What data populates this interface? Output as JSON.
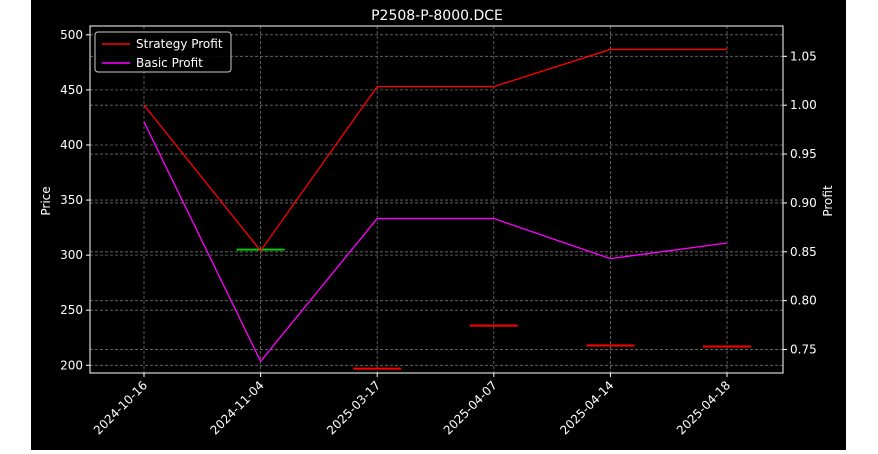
{
  "chart_data": {
    "type": "line",
    "title": "P2508-P-8000.DCE",
    "xlabel": "",
    "ylabel": "Price",
    "ylabel_right": "Profit",
    "categories": [
      "2024-10-16",
      "2024-11-04",
      "2025-03-17",
      "2025-04-07",
      "2025-04-14",
      "2025-04-18"
    ],
    "y_left": {
      "range": [
        193,
        508
      ],
      "ticks": [
        200,
        250,
        300,
        350,
        400,
        450,
        500
      ]
    },
    "y_right": {
      "range": [
        0.726,
        1.081
      ],
      "ticks": [
        "0.75",
        "0.80",
        "0.85",
        "0.90",
        "0.95",
        "1.00",
        "1.05"
      ]
    },
    "grid": true,
    "legend_position": "top-left",
    "series": [
      {
        "name": "Strategy Profit",
        "axis": "right",
        "color": "#ff0000",
        "values": [
          1.0,
          0.851,
          1.019,
          1.019,
          1.057,
          1.057
        ]
      },
      {
        "name": "Basic Profit",
        "axis": "right",
        "color": "#ff00ff",
        "values": [
          0.983,
          0.738,
          0.884,
          0.884,
          0.843,
          0.859
        ]
      }
    ],
    "markers": [
      {
        "at": "2024-11-04",
        "price": 305,
        "color": "#00cc00"
      },
      {
        "at": "2025-03-17",
        "price": 197,
        "color": "#ff0000"
      },
      {
        "at": "2025-04-07",
        "price": 236,
        "color": "#ff0000"
      },
      {
        "at": "2025-04-14",
        "price": 218,
        "color": "#ff0000"
      },
      {
        "at": "2025-04-18",
        "price": 217,
        "color": "#ff0000"
      }
    ]
  }
}
